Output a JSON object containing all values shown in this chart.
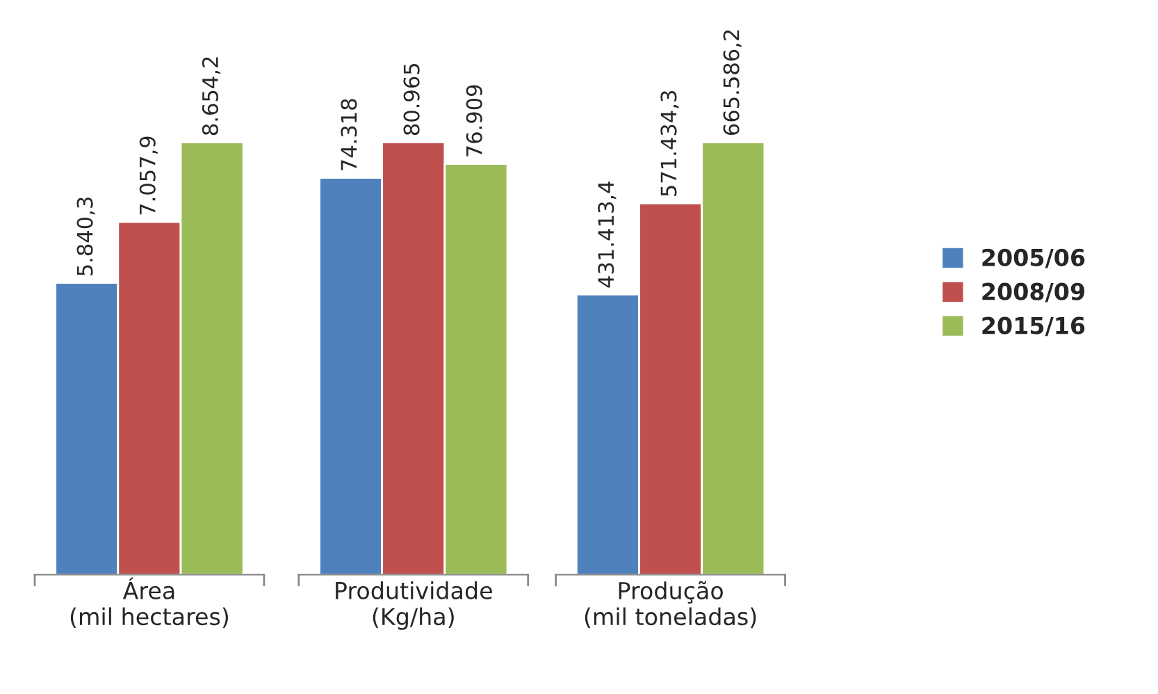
{
  "chart_data": [
    {
      "type": "bar",
      "categories": [
        "Área\n(mil hectares)"
      ],
      "legend": false,
      "series": [
        {
          "color": "#4f81bd",
          "values": [
            5840.3
          ],
          "value_labels": [
            "5.840,3"
          ]
        },
        {
          "color": "#c0504d",
          "values": [
            7057.9
          ],
          "value_labels": [
            "7.057,9"
          ]
        },
        {
          "color": "#9bbb59",
          "values": [
            8654.2
          ],
          "value_labels": [
            "8.654,2"
          ]
        }
      ]
    },
    {
      "type": "bar",
      "categories": [
        "Produtividade\n(Kg/ha)"
      ],
      "legend": false,
      "series": [
        {
          "color": "#4f81bd",
          "values": [
            74318
          ],
          "value_labels": [
            "74.318"
          ]
        },
        {
          "color": "#c0504d",
          "values": [
            80965
          ],
          "value_labels": [
            "80.965"
          ]
        },
        {
          "color": "#9bbb59",
          "values": [
            76909
          ],
          "value_labels": [
            "76.909"
          ]
        }
      ]
    },
    {
      "type": "bar",
      "categories": [
        "Produção\n(mil toneladas)"
      ],
      "legend": "right",
      "series": [
        {
          "name": "2005/06",
          "color": "#4f81bd",
          "values": [
            431413.4
          ],
          "value_labels": [
            "431.413,4"
          ]
        },
        {
          "name": "2008/09",
          "color": "#c0504d",
          "values": [
            571434.3
          ],
          "value_labels": [
            "571.434,3"
          ]
        },
        {
          "name": "2015/16",
          "color": "#9bbb59",
          "values": [
            665586.2
          ],
          "value_labels": [
            "665.586,2"
          ]
        }
      ]
    }
  ]
}
